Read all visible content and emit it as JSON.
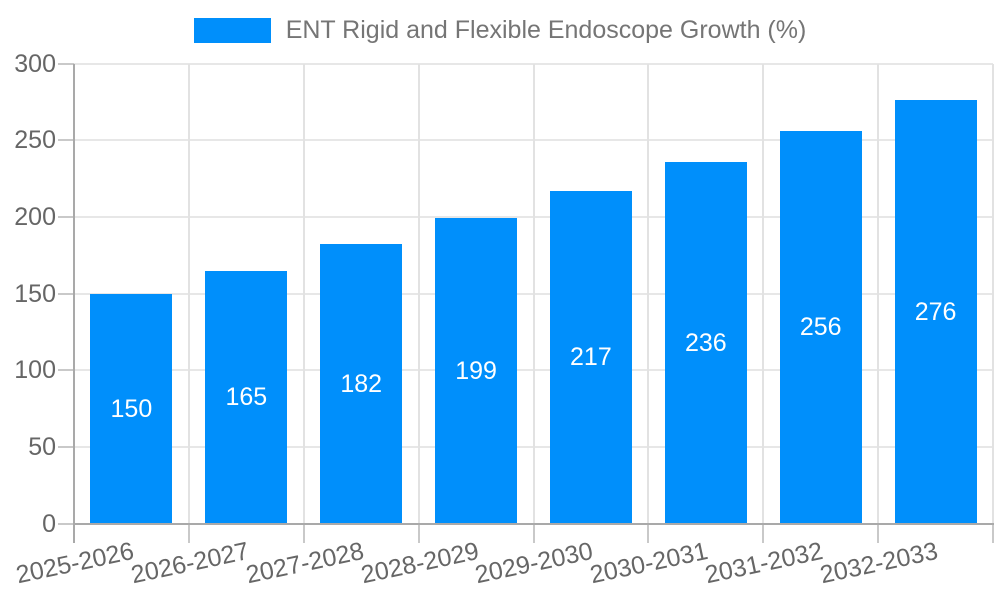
{
  "legend": {
    "label": "ENT Rigid and Flexible Endoscope Growth (%)"
  },
  "chart_data": {
    "type": "bar",
    "title": "ENT Rigid and Flexible Endoscope Growth (%)",
    "categories": [
      "2025-2026",
      "2026-2027",
      "2027-2028",
      "2028-2029",
      "2029-2030",
      "2030-2031",
      "2031-2032",
      "2032-2033"
    ],
    "values": [
      150,
      165,
      182,
      199,
      217,
      236,
      256,
      276
    ],
    "value_labels": [
      "150",
      "165",
      "182",
      "199",
      "217",
      "236",
      "256",
      "276"
    ],
    "xlabel": "",
    "ylabel": "",
    "ylim": [
      0,
      300
    ],
    "ytick_step": 50,
    "yticks": [
      0,
      50,
      100,
      150,
      200,
      250,
      300
    ],
    "grid": true,
    "legend_position": "top",
    "x_label_rotation_deg": -12,
    "colors": {
      "bar": "#008FFB",
      "value_label": "#FFFFFF",
      "axis_text": "#666666",
      "legend_text": "#757575",
      "gridline_h": "#E7E7E7",
      "gridline_v": "#E2E2E2",
      "axis_line": "#A9A9A9",
      "tick": "#C9C9C9"
    }
  }
}
